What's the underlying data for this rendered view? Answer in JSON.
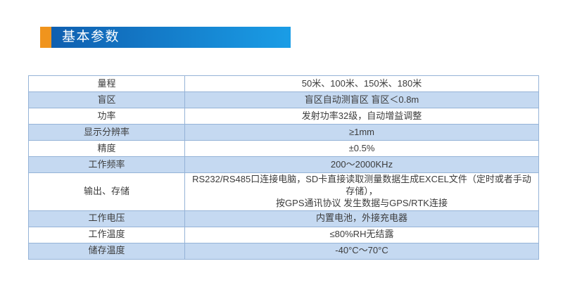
{
  "header": {
    "title": "基本参数",
    "colors": {
      "accent_orange": "#f0941d",
      "bar_gradient_start": "#0f5fb0",
      "bar_gradient_end": "#1a9de6"
    }
  },
  "table": {
    "colors": {
      "border": "#95b3d7",
      "alt_row": "#c5d9f1",
      "text": "#3c3c3c"
    },
    "rows": [
      {
        "label": "量程",
        "value": "50米、100米、150米、180米"
      },
      {
        "label": "盲区",
        "value": "盲区自动测盲区 盲区＜0.8m"
      },
      {
        "label": "功率",
        "value": "发射功率32级，自动增益调整"
      },
      {
        "label": "显示分辨率",
        "value": "≥1mm"
      },
      {
        "label": "精度",
        "value": "±0.5%"
      },
      {
        "label": "工作频率",
        "value": "200～2000KHz"
      },
      {
        "label": "输出、存储",
        "value": "RS232/RS485口连接电脑，SD卡直接读取测量数据生成EXCEL文件（定时或者手动存储），\n按GPS通讯协议 发生数据与GPS/RTK连接"
      },
      {
        "label": "工作电压",
        "value": "内置电池，外接充电器"
      },
      {
        "label": "工作温度",
        "value": "≤80%RH无结露"
      },
      {
        "label": "储存温度",
        "value": "-40°C～70°C"
      }
    ]
  }
}
